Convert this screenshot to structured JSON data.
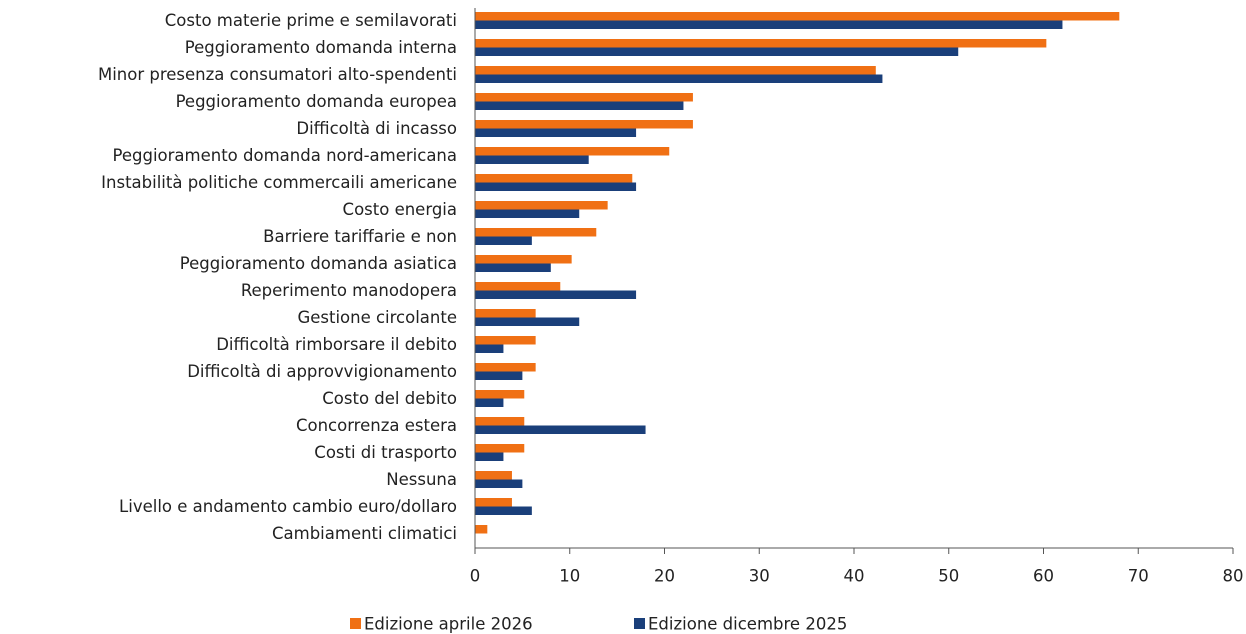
{
  "chart_data": {
    "type": "hbar",
    "categories": [
      "Costo materie prime e semilavorati",
      "Peggioramento domanda interna",
      "Minor presenza consumatori alto-spendenti",
      "Peggioramento domanda europea",
      "Difficoltà di incasso",
      "Peggioramento domanda nord-americana",
      "Instabilità politiche commercaili americane",
      "Costo energia",
      "Barriere tariffarie e non",
      "Peggioramento domanda asiatica",
      "Reperimento manodopera",
      "Gestione circolante",
      "Difficoltà rimborsare il debito",
      "Difficoltà di approvvigionamento",
      "Costo del debito",
      "Concorrenza estera",
      "Costi di trasporto",
      "Nessuna",
      "Livello e andamento cambio euro/dollaro",
      "Cambiamenti climatici"
    ],
    "series": [
      {
        "name": "Edizione aprile 2026",
        "color": "#f07014",
        "values": [
          68,
          60.3,
          42.3,
          23,
          23,
          20.5,
          16.6,
          14,
          12.8,
          10.2,
          9,
          6.4,
          6.4,
          6.4,
          5.2,
          5.2,
          5.2,
          3.9,
          3.9,
          1.3
        ]
      },
      {
        "name": "Edizione dicembre 2025",
        "color": "#1a3f7a",
        "values": [
          62,
          51,
          43,
          22,
          17,
          12,
          17,
          11,
          6,
          8,
          17,
          11,
          3,
          5,
          3,
          18,
          3,
          5,
          6,
          0
        ]
      }
    ],
    "xlim": [
      0,
      80
    ],
    "xticks": [
      0,
      10,
      20,
      30,
      40,
      50,
      60,
      70,
      80
    ],
    "grid": false,
    "legend": "bottom"
  }
}
